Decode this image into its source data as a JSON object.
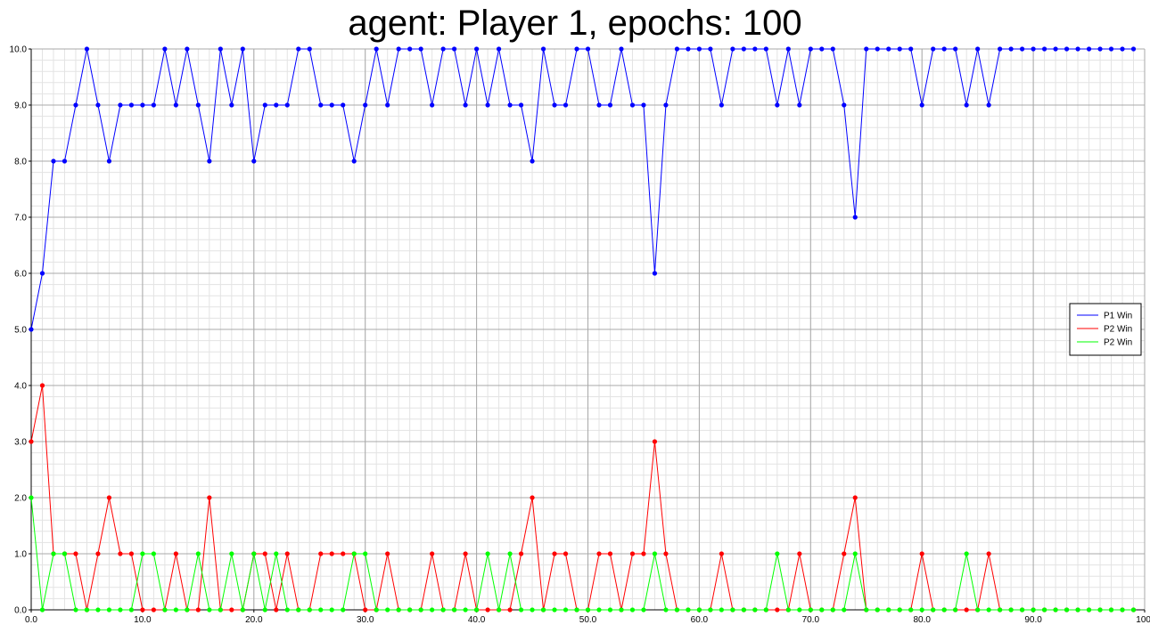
{
  "chart_data": {
    "type": "line",
    "title": "agent: Player 1, epochs: 100",
    "xlabel": "",
    "ylabel": "",
    "xlim": [
      0,
      100
    ],
    "ylim": [
      0,
      10
    ],
    "x_ticks": [
      "0.0",
      "10.0",
      "20.0",
      "30.0",
      "40.0",
      "50.0",
      "60.0",
      "70.0",
      "80.0",
      "90.0",
      "100."
    ],
    "y_ticks": [
      "0.0",
      "1.0",
      "2.0",
      "3.0",
      "4.0",
      "5.0",
      "6.0",
      "7.0",
      "8.0",
      "9.0",
      "10.0"
    ],
    "grid": true,
    "legend_position": "right",
    "x": [
      0,
      1,
      2,
      3,
      4,
      5,
      6,
      7,
      8,
      9,
      10,
      11,
      12,
      13,
      14,
      15,
      16,
      17,
      18,
      19,
      20,
      21,
      22,
      23,
      24,
      25,
      26,
      27,
      28,
      29,
      30,
      31,
      32,
      33,
      34,
      35,
      36,
      37,
      38,
      39,
      40,
      41,
      42,
      43,
      44,
      45,
      46,
      47,
      48,
      49,
      50,
      51,
      52,
      53,
      54,
      55,
      56,
      57,
      58,
      59,
      60,
      61,
      62,
      63,
      64,
      65,
      66,
      67,
      68,
      69,
      70,
      71,
      72,
      73,
      74,
      75,
      76,
      77,
      78,
      79,
      80,
      81,
      82,
      83,
      84,
      85,
      86,
      87,
      88,
      89,
      90,
      91,
      92,
      93,
      94,
      95,
      96,
      97,
      98,
      99
    ],
    "series": [
      {
        "name": "P1 Win",
        "color": "#0000ff",
        "values": [
          5,
          6,
          8,
          8,
          9,
          10,
          9,
          8,
          9,
          9,
          9,
          9,
          10,
          9,
          10,
          9,
          8,
          10,
          9,
          10,
          8,
          9,
          9,
          9,
          10,
          10,
          9,
          9,
          9,
          8,
          9,
          10,
          9,
          10,
          10,
          10,
          9,
          10,
          10,
          9,
          10,
          9,
          10,
          9,
          9,
          8,
          10,
          9,
          9,
          10,
          10,
          9,
          9,
          10,
          9,
          9,
          6,
          9,
          10,
          10,
          10,
          10,
          9,
          10,
          10,
          10,
          10,
          9,
          10,
          9,
          10,
          10,
          10,
          9,
          7,
          10,
          10,
          10,
          10,
          10,
          9,
          10,
          10,
          10,
          9,
          10,
          9,
          10,
          10,
          10,
          10,
          10,
          10,
          10,
          10,
          10,
          10,
          10,
          10,
          10
        ]
      },
      {
        "name": "P2 Win",
        "color": "#ff0000",
        "values": [
          3,
          4,
          1,
          1,
          1,
          0,
          1,
          2,
          1,
          1,
          0,
          0,
          0,
          1,
          0,
          0,
          2,
          0,
          0,
          0,
          1,
          1,
          0,
          1,
          0,
          0,
          1,
          1,
          1,
          1,
          0,
          0,
          1,
          0,
          0,
          0,
          1,
          0,
          0,
          1,
          0,
          0,
          0,
          0,
          1,
          2,
          0,
          1,
          1,
          0,
          0,
          1,
          1,
          0,
          1,
          1,
          3,
          1,
          0,
          0,
          0,
          0,
          1,
          0,
          0,
          0,
          0,
          0,
          0,
          1,
          0,
          0,
          0,
          1,
          2,
          0,
          0,
          0,
          0,
          0,
          1,
          0,
          0,
          0,
          0,
          0,
          1,
          0,
          0,
          0,
          0,
          0,
          0,
          0,
          0,
          0,
          0,
          0,
          0,
          0
        ]
      },
      {
        "name": "P2 Win",
        "color": "#00ff00",
        "values": [
          2,
          0,
          1,
          1,
          0,
          0,
          0,
          0,
          0,
          0,
          1,
          1,
          0,
          0,
          0,
          1,
          0,
          0,
          1,
          0,
          1,
          0,
          1,
          0,
          0,
          0,
          0,
          0,
          0,
          1,
          1,
          0,
          0,
          0,
          0,
          0,
          0,
          0,
          0,
          0,
          0,
          1,
          0,
          1,
          0,
          0,
          0,
          0,
          0,
          0,
          0,
          0,
          0,
          0,
          0,
          0,
          1,
          0,
          0,
          0,
          0,
          0,
          0,
          0,
          0,
          0,
          0,
          1,
          0,
          0,
          0,
          0,
          0,
          0,
          1,
          0,
          0,
          0,
          0,
          0,
          0,
          0,
          0,
          0,
          1,
          0,
          0,
          0,
          0,
          0,
          0,
          0,
          0,
          0,
          0,
          0,
          0,
          0,
          0,
          0
        ]
      }
    ]
  }
}
